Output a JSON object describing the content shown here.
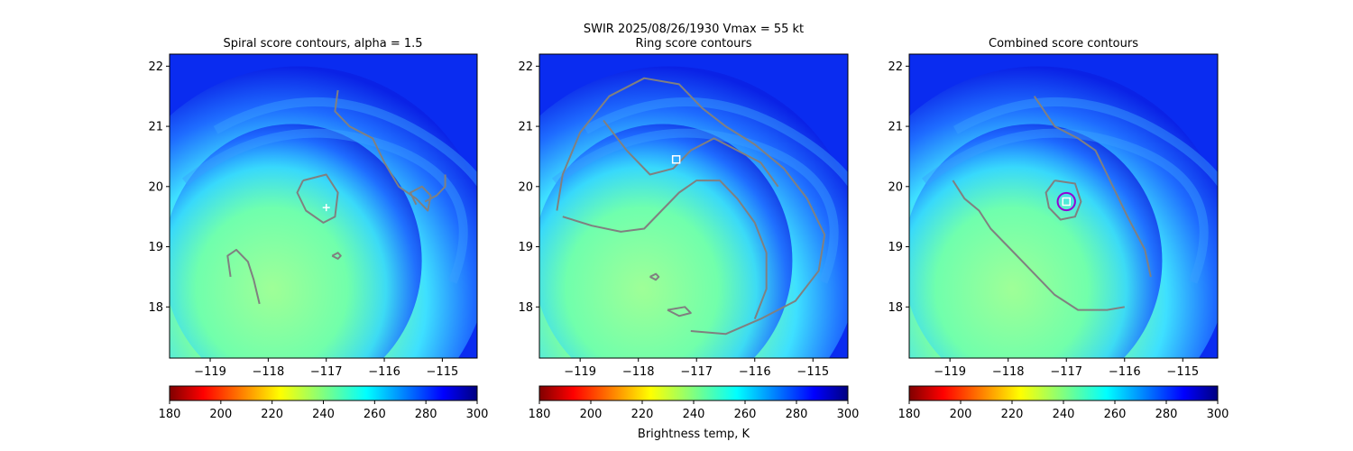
{
  "figure": {
    "suptitle_line1": "SWIR  2025/08/26/1930    Vmax = 55 kt"
  },
  "colors": {
    "contour": "#808080",
    "marker": "#ffffff",
    "combined_circle": "#9400d3",
    "colormap": "jet_r"
  },
  "colorbar": {
    "label": "Brightness temp, K",
    "range": [
      180,
      300
    ],
    "ticks": [
      "180",
      "200",
      "220",
      "240",
      "260",
      "280",
      "300"
    ]
  },
  "chart_data": [
    {
      "type": "heatmap",
      "title": "Spiral score contours, alpha =  1.5",
      "xlim": [
        -119.7,
        -114.4
      ],
      "ylim": [
        17.15,
        22.2
      ],
      "xticks": [
        "−119",
        "−118",
        "−117",
        "−116",
        "−115"
      ],
      "yticks": [
        "18",
        "19",
        "20",
        "21",
        "22"
      ],
      "marker": {
        "symbol": "plus",
        "lon": -117.0,
        "lat": 19.65
      },
      "contours": [
        [
          [
            -116.8,
            21.6
          ],
          [
            -116.85,
            21.25
          ],
          [
            -116.6,
            21.0
          ],
          [
            -116.2,
            20.8
          ],
          [
            -116.0,
            20.4
          ],
          [
            -115.75,
            20.0
          ],
          [
            -115.45,
            19.8
          ],
          [
            -115.25,
            19.6
          ],
          [
            -115.2,
            19.85
          ],
          [
            -115.35,
            20.0
          ],
          [
            -115.55,
            19.9
          ],
          [
            -115.45,
            19.7
          ]
        ],
        [
          [
            -115.3,
            19.75
          ],
          [
            -115.1,
            19.85
          ],
          [
            -114.95,
            20.0
          ],
          [
            -114.95,
            20.2
          ]
        ],
        [
          [
            -117.4,
            20.1
          ],
          [
            -117.0,
            20.2
          ],
          [
            -116.8,
            19.9
          ],
          [
            -116.85,
            19.5
          ],
          [
            -117.05,
            19.4
          ],
          [
            -117.35,
            19.6
          ],
          [
            -117.5,
            19.9
          ],
          [
            -117.4,
            20.1
          ]
        ],
        [
          [
            -116.9,
            18.85
          ],
          [
            -116.8,
            18.8
          ],
          [
            -116.75,
            18.85
          ],
          [
            -116.8,
            18.9
          ],
          [
            -116.9,
            18.85
          ]
        ],
        [
          [
            -118.65,
            18.5
          ],
          [
            -118.7,
            18.85
          ],
          [
            -118.55,
            18.95
          ],
          [
            -118.35,
            18.75
          ],
          [
            -118.25,
            18.45
          ],
          [
            -118.15,
            18.05
          ]
        ]
      ]
    },
    {
      "type": "heatmap",
      "title": "Ring score contours",
      "xlim": [
        -119.7,
        -114.4
      ],
      "ylim": [
        17.15,
        22.2
      ],
      "xticks": [
        "−119",
        "−118",
        "−117",
        "−116",
        "−115"
      ],
      "yticks": [
        "18",
        "19",
        "20",
        "21",
        "22"
      ],
      "marker": {
        "symbol": "square",
        "lon": -117.35,
        "lat": 20.45
      },
      "contours": [
        [
          [
            -119.4,
            19.6
          ],
          [
            -119.3,
            20.2
          ],
          [
            -119.0,
            20.9
          ],
          [
            -118.5,
            21.5
          ],
          [
            -117.9,
            21.8
          ],
          [
            -117.3,
            21.7
          ],
          [
            -116.9,
            21.3
          ],
          [
            -116.5,
            21.0
          ],
          [
            -116.0,
            20.7
          ],
          [
            -115.5,
            20.3
          ],
          [
            -115.1,
            19.8
          ],
          [
            -114.8,
            19.2
          ],
          [
            -114.9,
            18.6
          ],
          [
            -115.3,
            18.1
          ],
          [
            -115.9,
            17.8
          ],
          [
            -116.5,
            17.55
          ],
          [
            -117.1,
            17.6
          ]
        ],
        [
          [
            -119.3,
            19.5
          ],
          [
            -118.8,
            19.35
          ],
          [
            -118.3,
            19.25
          ],
          [
            -117.9,
            19.3
          ],
          [
            -117.6,
            19.6
          ],
          [
            -117.3,
            19.9
          ],
          [
            -117.0,
            20.1
          ],
          [
            -116.6,
            20.1
          ],
          [
            -116.3,
            19.8
          ],
          [
            -116.0,
            19.4
          ],
          [
            -115.8,
            18.9
          ],
          [
            -115.8,
            18.3
          ],
          [
            -116.0,
            17.8
          ]
        ],
        [
          [
            -118.6,
            21.1
          ],
          [
            -118.2,
            20.6
          ],
          [
            -117.8,
            20.2
          ],
          [
            -117.4,
            20.3
          ],
          [
            -117.1,
            20.6
          ],
          [
            -116.7,
            20.8
          ],
          [
            -116.3,
            20.6
          ],
          [
            -115.9,
            20.4
          ],
          [
            -115.6,
            20.0
          ]
        ],
        [
          [
            -117.8,
            18.5
          ],
          [
            -117.7,
            18.45
          ],
          [
            -117.65,
            18.5
          ],
          [
            -117.7,
            18.55
          ],
          [
            -117.8,
            18.5
          ]
        ],
        [
          [
            -117.5,
            17.95
          ],
          [
            -117.3,
            17.85
          ],
          [
            -117.1,
            17.9
          ],
          [
            -117.2,
            18.0
          ],
          [
            -117.5,
            17.95
          ]
        ]
      ]
    },
    {
      "type": "heatmap",
      "title": "Combined score contours",
      "xlim": [
        -119.7,
        -114.4
      ],
      "ylim": [
        17.15,
        22.2
      ],
      "xticks": [
        "−119",
        "−118",
        "−117",
        "−116",
        "−115"
      ],
      "yticks": [
        "18",
        "19",
        "20",
        "21",
        "22"
      ],
      "marker": {
        "symbol": "square",
        "lon": -117.0,
        "lat": 19.75
      },
      "circle": {
        "lon": -117.0,
        "lat": 19.75,
        "radius_deg": 0.15
      },
      "contours": [
        [
          [
            -117.55,
            21.5
          ],
          [
            -117.2,
            21.0
          ],
          [
            -116.8,
            20.8
          ],
          [
            -116.5,
            20.6
          ],
          [
            -116.3,
            20.2
          ],
          [
            -115.95,
            19.5
          ],
          [
            -115.65,
            18.95
          ],
          [
            -115.55,
            18.5
          ]
        ],
        [
          [
            -118.95,
            20.1
          ],
          [
            -118.75,
            19.8
          ],
          [
            -118.5,
            19.6
          ],
          [
            -118.3,
            19.3
          ],
          [
            -118.0,
            19.0
          ],
          [
            -117.6,
            18.6
          ],
          [
            -117.2,
            18.2
          ],
          [
            -116.8,
            17.95
          ],
          [
            -116.3,
            17.95
          ],
          [
            -116.0,
            18.0
          ]
        ],
        [
          [
            -117.2,
            20.1
          ],
          [
            -116.85,
            20.05
          ],
          [
            -116.75,
            19.75
          ],
          [
            -116.85,
            19.5
          ],
          [
            -117.1,
            19.45
          ],
          [
            -117.3,
            19.65
          ],
          [
            -117.35,
            19.9
          ],
          [
            -117.2,
            20.1
          ]
        ]
      ]
    }
  ]
}
